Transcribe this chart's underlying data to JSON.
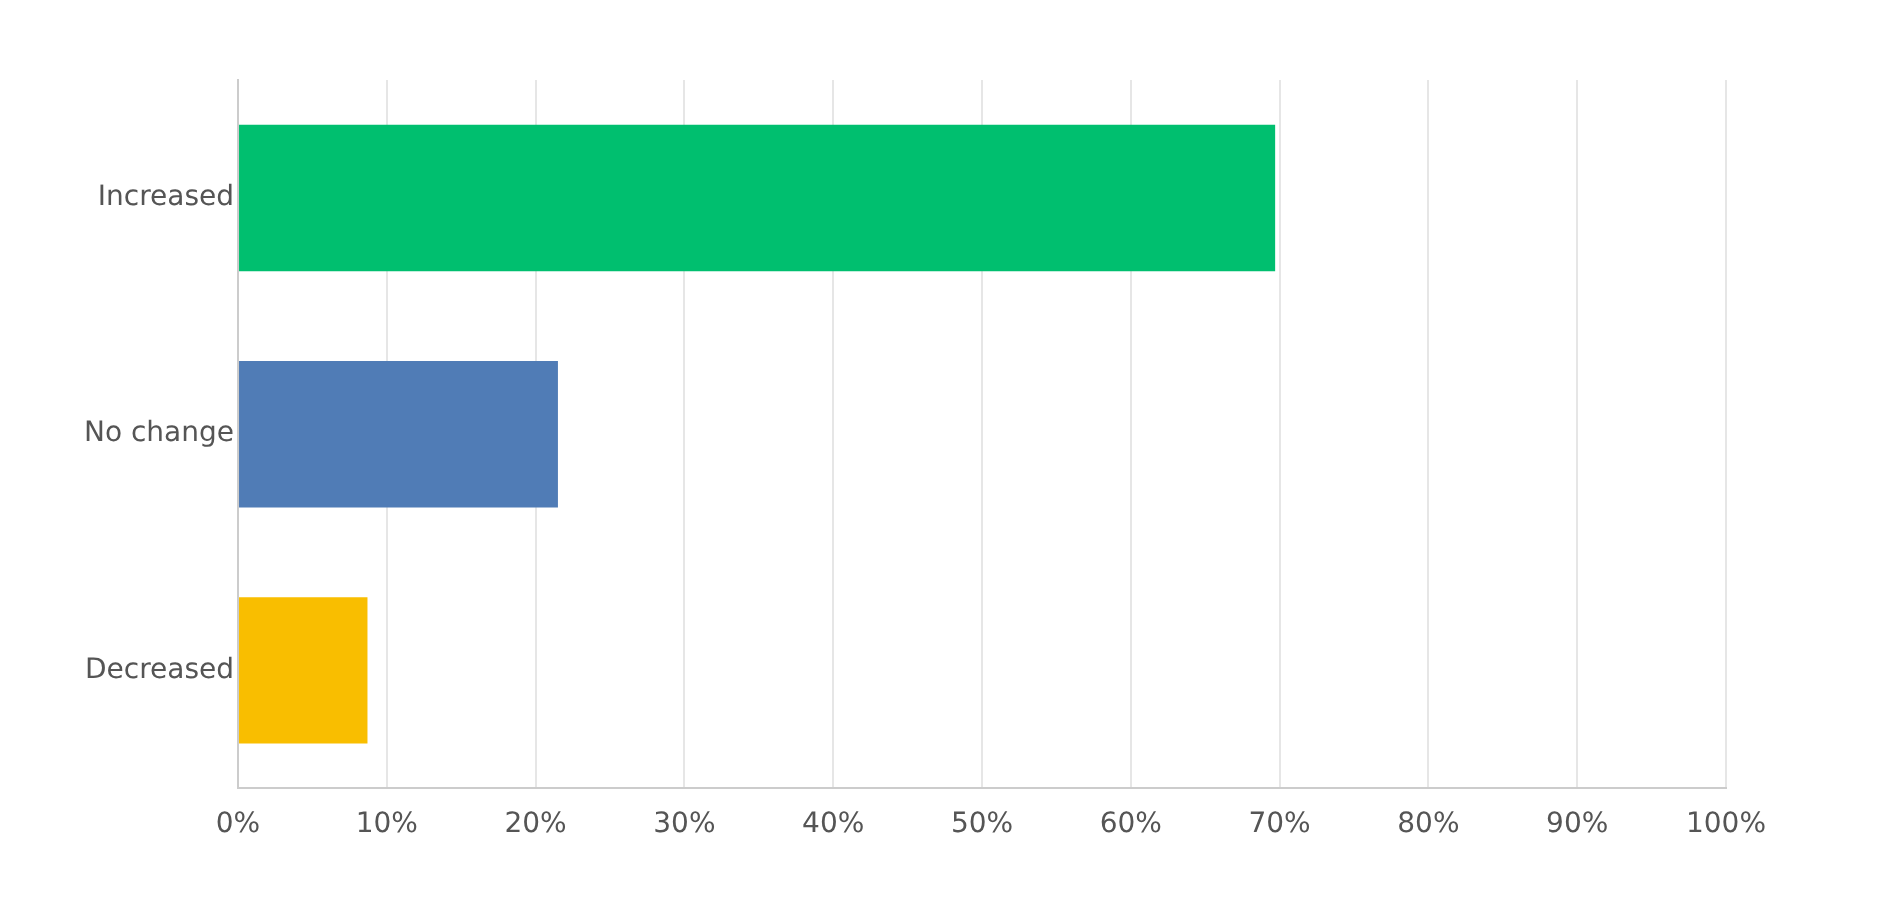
{
  "chart_data": {
    "type": "bar",
    "orientation": "horizontal",
    "categories": [
      "Increased",
      "No change",
      "Decreased"
    ],
    "values": [
      69.7,
      21.5,
      8.7
    ],
    "colors": [
      "#00bf6f",
      "#507cb6",
      "#f9be00"
    ],
    "xlim": [
      0,
      100
    ],
    "xticks": [
      {
        "value": 0,
        "label": "0%"
      },
      {
        "value": 10,
        "label": "10%"
      },
      {
        "value": 20,
        "label": "20%"
      },
      {
        "value": 30,
        "label": "30%"
      },
      {
        "value": 40,
        "label": "40%"
      },
      {
        "value": 50,
        "label": "50%"
      },
      {
        "value": 60,
        "label": "60%"
      },
      {
        "value": 70,
        "label": "70%"
      },
      {
        "value": 80,
        "label": "80%"
      },
      {
        "value": 90,
        "label": "90%"
      },
      {
        "value": 100,
        "label": "100%"
      }
    ],
    "grid": "x",
    "legend": false
  }
}
